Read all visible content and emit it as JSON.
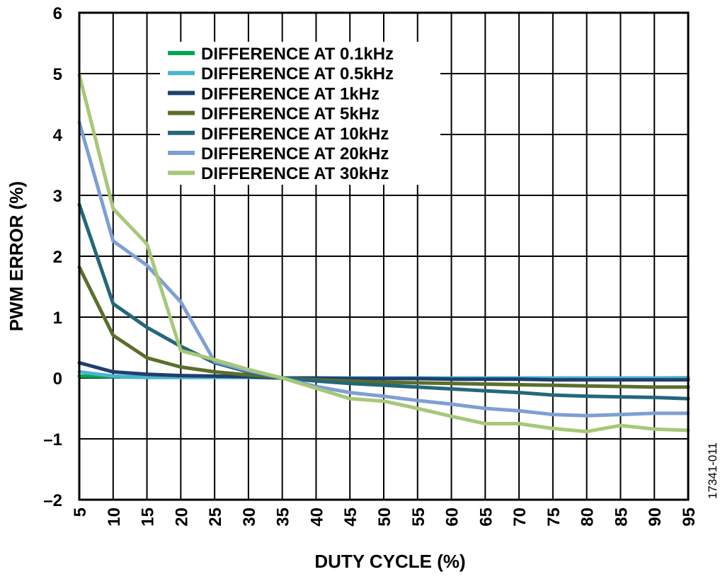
{
  "chart_data": {
    "type": "line",
    "title": "",
    "xlabel": "DUTY CYCLE (%)",
    "ylabel": "PWM ERROR (%)",
    "xlim": [
      5,
      95
    ],
    "ylim": [
      -2,
      6
    ],
    "x": [
      5,
      10,
      15,
      20,
      25,
      30,
      35,
      40,
      45,
      50,
      55,
      60,
      65,
      70,
      75,
      80,
      85,
      90,
      95
    ],
    "x_ticks": [
      "5",
      "10",
      "15",
      "20",
      "25",
      "30",
      "35",
      "40",
      "45",
      "50",
      "55",
      "60",
      "65",
      "70",
      "75",
      "80",
      "85",
      "90",
      "95"
    ],
    "y_ticks": [
      "6",
      "5",
      "4",
      "3",
      "2",
      "1",
      "0",
      "–1",
      "–2"
    ],
    "grid": true,
    "legend_position": "top-center",
    "figure_id": "17341-011",
    "series": [
      {
        "name": "DIFFERENCE AT 0.1kHz",
        "color": "#00a651",
        "values": [
          0.03,
          0.02,
          0.01,
          0.01,
          0.01,
          0.01,
          0.0,
          0.0,
          0.0,
          0.0,
          0.0,
          0.0,
          0.0,
          0.0,
          0.0,
          0.0,
          0.0,
          0.0,
          0.0
        ]
      },
      {
        "name": "DIFFERENCE AT 0.5kHz",
        "color": "#4bb3d3",
        "values": [
          0.1,
          0.03,
          0.01,
          0.01,
          0.01,
          0.01,
          0.0,
          0.0,
          0.0,
          0.0,
          0.0,
          0.0,
          0.0,
          0.0,
          0.0,
          0.0,
          0.0,
          0.0,
          -0.01
        ]
      },
      {
        "name": "DIFFERENCE AT 1kHz",
        "color": "#1f3f6e",
        "values": [
          0.25,
          0.1,
          0.06,
          0.04,
          0.03,
          0.02,
          0.0,
          0.0,
          -0.01,
          -0.01,
          -0.01,
          -0.02,
          -0.02,
          -0.02,
          -0.03,
          -0.03,
          -0.03,
          -0.03,
          -0.03
        ]
      },
      {
        "name": "DIFFERENCE AT 5kHz",
        "color": "#5b6e2b",
        "values": [
          1.82,
          0.7,
          0.33,
          0.18,
          0.1,
          0.05,
          0.0,
          -0.03,
          -0.05,
          -0.07,
          -0.08,
          -0.09,
          -0.1,
          -0.11,
          -0.12,
          -0.13,
          -0.14,
          -0.15,
          -0.15
        ]
      },
      {
        "name": "DIFFERENCE AT 10kHz",
        "color": "#24677a",
        "values": [
          2.85,
          1.22,
          0.83,
          0.52,
          0.25,
          0.1,
          0.0,
          -0.05,
          -0.09,
          -0.12,
          -0.15,
          -0.18,
          -0.21,
          -0.24,
          -0.28,
          -0.3,
          -0.31,
          -0.32,
          -0.34
        ]
      },
      {
        "name": "DIFFERENCE AT 20kHz",
        "color": "#7e9fd3",
        "values": [
          4.2,
          2.25,
          1.85,
          1.25,
          0.27,
          0.12,
          0.0,
          -0.14,
          -0.24,
          -0.3,
          -0.37,
          -0.43,
          -0.5,
          -0.54,
          -0.6,
          -0.62,
          -0.6,
          -0.58,
          -0.58
        ]
      },
      {
        "name": "DIFFERENCE AT 30kHz",
        "color": "#a7c878",
        "values": [
          4.98,
          2.78,
          2.2,
          0.45,
          0.3,
          0.14,
          0.0,
          -0.17,
          -0.34,
          -0.38,
          -0.5,
          -0.63,
          -0.75,
          -0.75,
          -0.83,
          -0.88,
          -0.78,
          -0.84,
          -0.86
        ]
      }
    ]
  }
}
